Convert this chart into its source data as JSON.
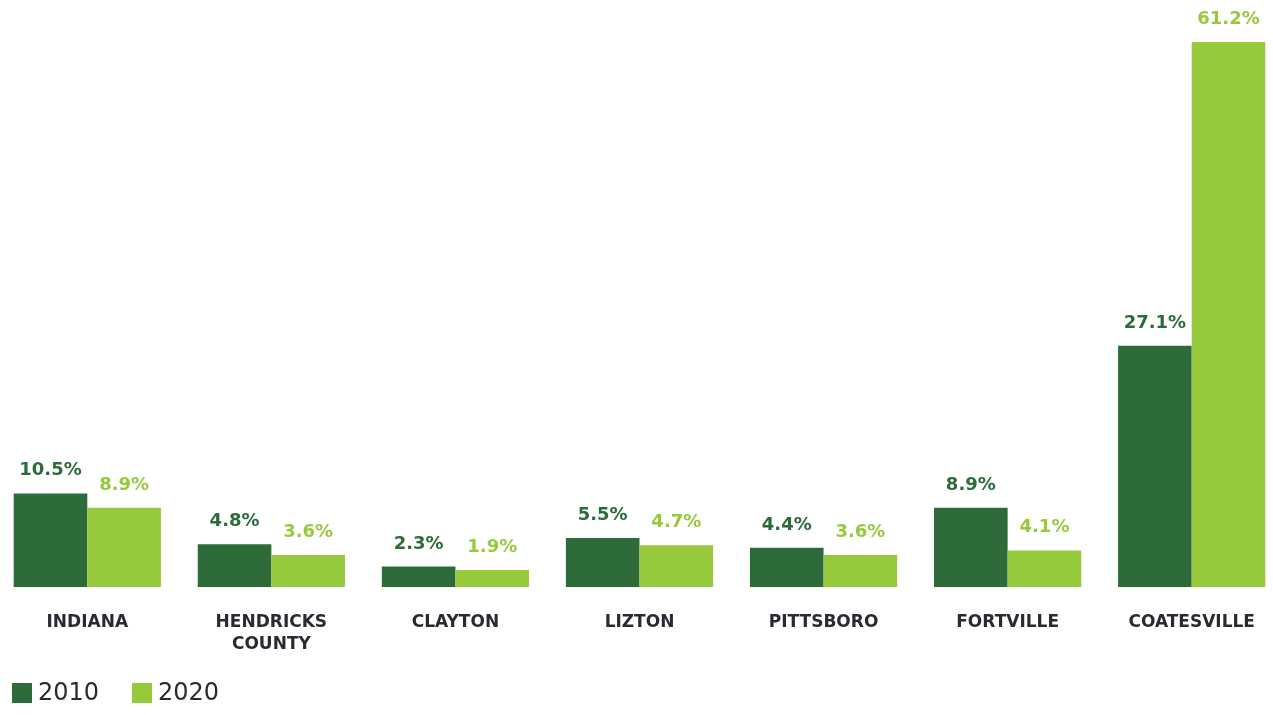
{
  "chart_data": {
    "type": "bar",
    "categories": [
      "INDIANA",
      "HENDRICKS COUNTY",
      "CLAYTON",
      "LIZTON",
      "PITTSBORO",
      "FORTVILLE",
      "COATESVILLE"
    ],
    "series": [
      {
        "name": "2010",
        "color": "#2e6b3a",
        "values": [
          10.5,
          4.8,
          2.3,
          5.5,
          4.4,
          8.9,
          27.1
        ],
        "value_labels": [
          "10.5%",
          "4.8%",
          "2.3%",
          "5.5%",
          "4.4%",
          "8.9%",
          "27.1%"
        ]
      },
      {
        "name": "2020",
        "color": "#97c93d",
        "values": [
          8.9,
          3.6,
          1.9,
          4.7,
          3.6,
          4.1,
          61.2
        ],
        "value_labels": [
          "8.9%",
          "3.6%",
          "1.9%",
          "4.7%",
          "3.6%",
          "4.1%",
          "61.2%"
        ]
      }
    ],
    "grid": false,
    "legend": "bottom"
  }
}
